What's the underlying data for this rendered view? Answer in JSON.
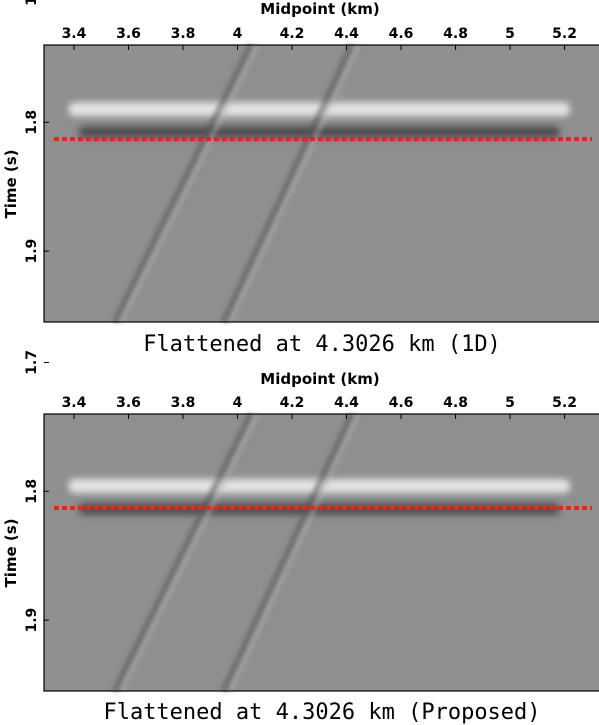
{
  "chart_data": [
    {
      "type": "heatmap",
      "title": "Flattened at 4.3026 km (1D)",
      "xlabel": "Midpoint (km)",
      "ylabel": "Time (s)",
      "xlim": [
        3.29,
        5.33
      ],
      "ylim": [
        1.74,
        1.955
      ],
      "x_ticks": [
        "3.4",
        "3.6",
        "3.8",
        "4",
        "4.2",
        "4.4",
        "4.6",
        "4.8",
        "5",
        "5.2"
      ],
      "y_ticks": [
        "1.7",
        "1.8",
        "1.9"
      ],
      "reference_line": {
        "time": 1.813,
        "color": "#ff1a1a",
        "style": "dotted"
      },
      "events": [
        {
          "kind": "flattened-reflection",
          "x_range": [
            3.38,
            5.22
          ],
          "time_center": 1.8
        },
        {
          "kind": "dipping",
          "x_start": 3.55,
          "t_start": 1.955,
          "x_end": 4.05,
          "t_end": 1.74
        },
        {
          "kind": "dipping",
          "x_start": 3.95,
          "t_start": 1.955,
          "x_end": 4.42,
          "t_end": 1.74
        }
      ],
      "colors": {
        "background": "#8f8f8f",
        "reference": "#ff1a1a"
      }
    },
    {
      "type": "heatmap",
      "title": "Flattened at 4.3026 km (Proposed)",
      "xlabel": "Midpoint (km)",
      "ylabel": "Time (s)",
      "xlim": [
        3.29,
        5.33
      ],
      "ylim": [
        1.74,
        1.955
      ],
      "x_ticks": [
        "3.4",
        "3.6",
        "3.8",
        "4",
        "4.2",
        "4.4",
        "4.6",
        "4.8",
        "5",
        "5.2"
      ],
      "y_ticks": [
        "1.7",
        "1.8",
        "1.9"
      ],
      "reference_line": {
        "time": 1.813,
        "color": "#ff1a1a",
        "style": "dotted"
      },
      "events": [
        {
          "kind": "flattened-reflection",
          "x_range": [
            3.38,
            5.22
          ],
          "time_center": 1.806
        },
        {
          "kind": "dipping",
          "x_start": 3.55,
          "t_start": 1.955,
          "x_end": 4.05,
          "t_end": 1.74
        },
        {
          "kind": "dipping",
          "x_start": 3.95,
          "t_start": 1.955,
          "x_end": 4.42,
          "t_end": 1.74
        }
      ],
      "colors": {
        "background": "#8f8f8f",
        "reference": "#ff1a1a"
      }
    }
  ]
}
